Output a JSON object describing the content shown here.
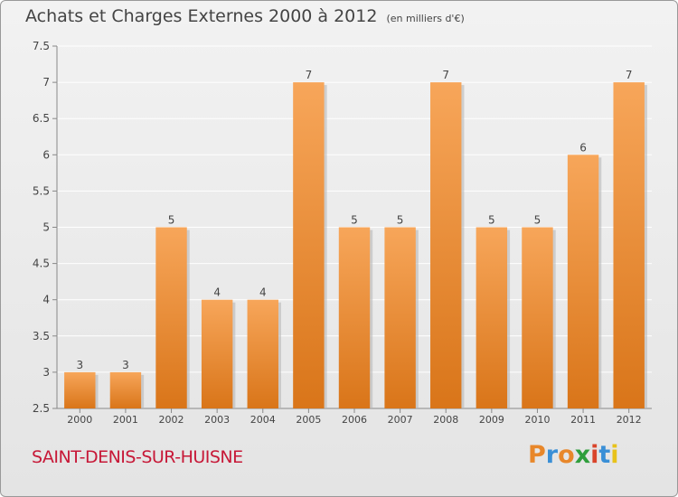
{
  "header": {
    "title": "Achats et Charges Externes 2000 à 2012",
    "unit": "(en milliers d'€)"
  },
  "footer": {
    "commune": "SAINT-DENIS-SUR-HUISNE",
    "brand": "Proxiti",
    "brand_colors": [
      "#e8872a",
      "#3a8fd6",
      "#e8872a",
      "#2f9e3c",
      "#d9442b",
      "#3a8fd6",
      "#e8c21a"
    ]
  },
  "colors": {
    "bar_top": "#f7a65a",
    "bar_bottom": "#d97519",
    "bar_shadow": "#b8b8b8",
    "grid": "#ffffff",
    "axis_text": "#444444",
    "title_text": "#444444",
    "commune_text": "#c71837"
  },
  "chart_data": {
    "type": "bar",
    "title": "Achats et Charges Externes 2000 à 2012",
    "xlabel": "",
    "ylabel": "",
    "categories": [
      "2000",
      "2001",
      "2002",
      "2003",
      "2004",
      "2005",
      "2006",
      "2007",
      "2008",
      "2009",
      "2010",
      "2011",
      "2012"
    ],
    "values": [
      3,
      3,
      5,
      4,
      4,
      7,
      5,
      5,
      7,
      5,
      5,
      6,
      7
    ],
    "data_labels": [
      "3",
      "3",
      "5",
      "4",
      "4",
      "7",
      "5",
      "5",
      "7",
      "5",
      "5",
      "6",
      "7"
    ],
    "ylim": [
      2.5,
      7.5
    ],
    "yticks": [
      2.5,
      3,
      3.5,
      4,
      4.5,
      5,
      5.5,
      6,
      6.5,
      7,
      7.5
    ],
    "ytick_labels": [
      "2.5",
      "3",
      "3.5",
      "4",
      "4.5",
      "5",
      "5.5",
      "6",
      "6.5",
      "7",
      "7.5"
    ],
    "grid": true,
    "legend": "none"
  }
}
